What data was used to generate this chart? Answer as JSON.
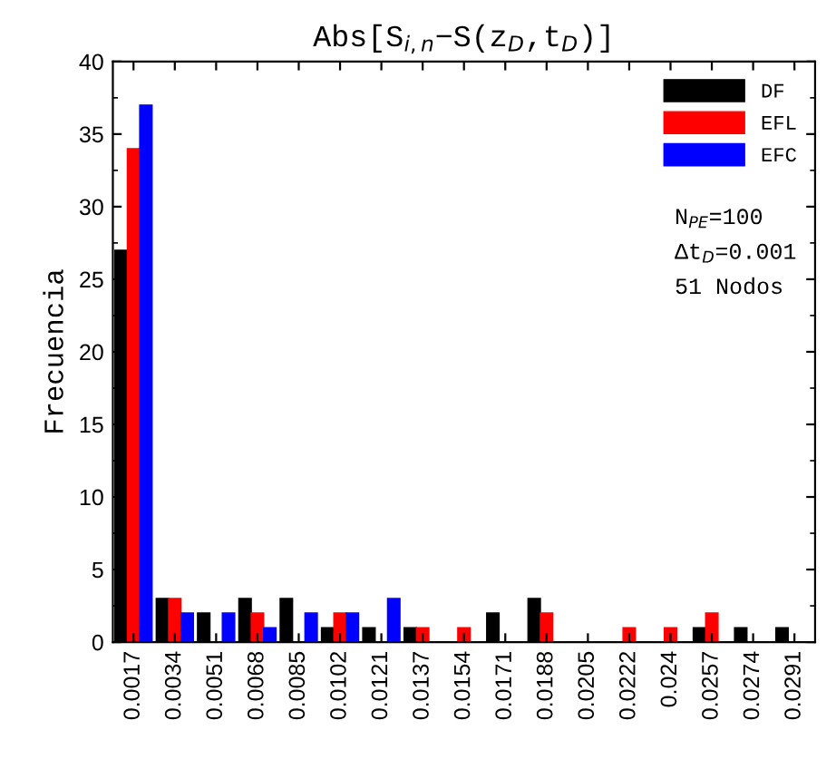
{
  "chart_data": {
    "type": "bar",
    "title": "Abs[S$_{i,n}$−S(z$_{D}$,t$_{D}$)]",
    "ylabel": "Frecuencia",
    "categories": [
      "0.0017",
      "0.0034",
      "0.0051",
      "0.0068",
      "0.0085",
      "0.0102",
      "0.0121",
      "0.0137",
      "0.0154",
      "0.0171",
      "0.0188",
      "0.0205",
      "0.0222",
      "0.024",
      "0.0257",
      "0.0274",
      "0.0291"
    ],
    "series": [
      {
        "name": "DF",
        "color": "#000000",
        "values": [
          27,
          3,
          2,
          3,
          3,
          1,
          1,
          1,
          0,
          2,
          3,
          0,
          0,
          0,
          1,
          1,
          1
        ]
      },
      {
        "name": "EFL",
        "color": "#ff0000",
        "values": [
          34,
          3,
          0,
          2,
          0,
          2,
          0,
          1,
          1,
          0,
          2,
          0,
          1,
          1,
          2,
          0,
          0
        ]
      },
      {
        "name": "EFC",
        "color": "#0000ff",
        "values": [
          37,
          2,
          2,
          1,
          2,
          2,
          3,
          0,
          0,
          0,
          0,
          0,
          0,
          0,
          0,
          0,
          0
        ]
      }
    ],
    "ylim": [
      0,
      40
    ],
    "yticks": [
      0,
      5,
      10,
      15,
      20,
      25,
      30,
      35,
      40
    ],
    "legend": "top right",
    "grid": false,
    "annotations": [
      "N$_{PE}$=100",
      "Δt$_{D}$=0.001",
      "51 Nodos"
    ]
  }
}
